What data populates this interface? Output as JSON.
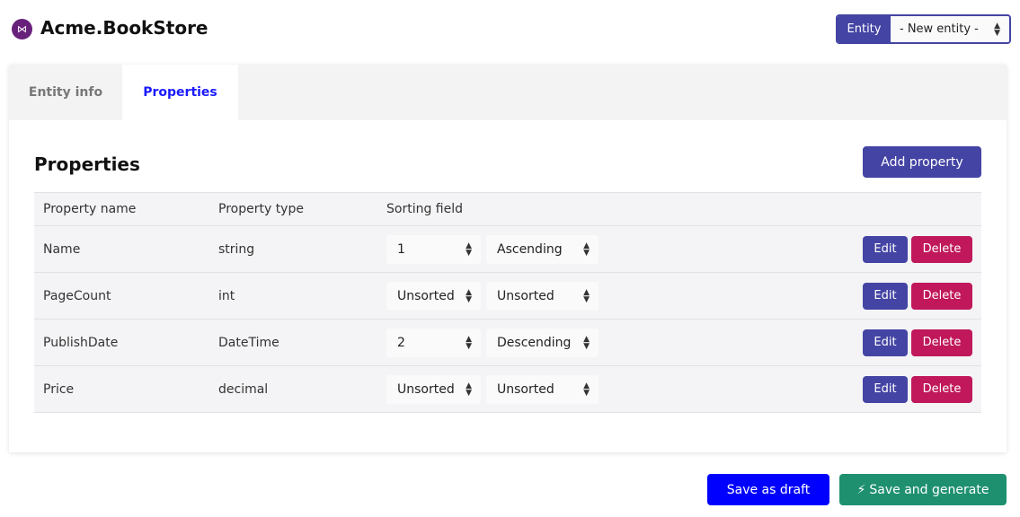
{
  "app": {
    "title": "Acme.BookStore",
    "logo_icon": "visual-studio-icon"
  },
  "entity_selector": {
    "label": "Entity",
    "value": "- New entity -"
  },
  "tabs": [
    {
      "label": "Entity info",
      "active": false
    },
    {
      "label": "Properties",
      "active": true
    }
  ],
  "main": {
    "heading": "Properties",
    "add_label": "Add property",
    "columns": [
      "Property name",
      "Property type",
      "Sorting field"
    ],
    "rows": [
      {
        "name": "Name",
        "type": "string",
        "order": "1",
        "direction": "Ascending"
      },
      {
        "name": "PageCount",
        "type": "int",
        "order": "Unsorted",
        "direction": "Unsorted"
      },
      {
        "name": "PublishDate",
        "type": "DateTime",
        "order": "2",
        "direction": "Descending"
      },
      {
        "name": "Price",
        "type": "decimal",
        "order": "Unsorted",
        "direction": "Unsorted"
      }
    ],
    "edit_label": "Edit",
    "delete_label": "Delete"
  },
  "footer": {
    "draft_label": "Save as draft",
    "generate_label": "Save and generate"
  },
  "colors": {
    "primary": "#4444a4",
    "danger": "#c0185a",
    "draft": "#0000ff",
    "generate": "#1e9070"
  }
}
